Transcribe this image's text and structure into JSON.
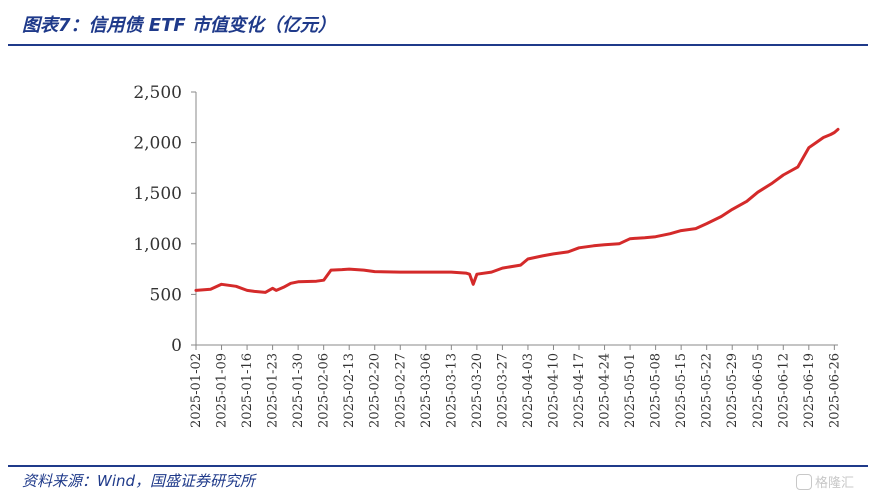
{
  "title": "图表7：信用债 ETF 市值变化（亿元）",
  "source": "资料来源：Wind，国盛证券研究所",
  "watermark": "格隆汇",
  "chart_data": {
    "type": "line",
    "title": "图表7：信用债 ETF 市值变化（亿元）",
    "ylim": [
      0,
      2500
    ],
    "yticks": [
      0,
      500,
      1000,
      1500,
      2000,
      2500
    ],
    "ytick_labels": [
      "0",
      "500",
      "1,000",
      "1,500",
      "2,000",
      "2,500"
    ],
    "grid": false,
    "x_tick_labels": [
      "2025-01-02",
      "2025-01-09",
      "2025-01-16",
      "2025-01-23",
      "2025-01-30",
      "2025-02-06",
      "2025-02-13",
      "2025-02-20",
      "2025-02-27",
      "2025-03-06",
      "2025-03-13",
      "2025-03-20",
      "2025-03-27",
      "2025-04-03",
      "2025-04-10",
      "2025-04-17",
      "2025-04-24",
      "2025-05-01",
      "2025-05-08",
      "2025-05-15",
      "2025-05-22",
      "2025-05-29",
      "2025-06-05",
      "2025-06-12",
      "2025-06-19",
      "2025-06-26"
    ],
    "series": [
      {
        "color": "#d42a2a",
        "x": [
          "2025-01-02",
          "2025-01-06",
          "2025-01-09",
          "2025-01-13",
          "2025-01-16",
          "2025-01-18",
          "2025-01-21",
          "2025-01-23",
          "2025-01-24",
          "2025-01-26",
          "2025-01-28",
          "2025-01-30",
          "2025-02-04",
          "2025-02-06",
          "2025-02-08",
          "2025-02-11",
          "2025-02-13",
          "2025-02-17",
          "2025-02-20",
          "2025-02-27",
          "2025-03-06",
          "2025-03-13",
          "2025-03-17",
          "2025-03-18",
          "2025-03-19",
          "2025-03-20",
          "2025-03-24",
          "2025-03-27",
          "2025-04-01",
          "2025-04-03",
          "2025-04-07",
          "2025-04-10",
          "2025-04-14",
          "2025-04-17",
          "2025-04-21",
          "2025-04-24",
          "2025-04-28",
          "2025-05-01",
          "2025-05-05",
          "2025-05-08",
          "2025-05-12",
          "2025-05-15",
          "2025-05-19",
          "2025-05-22",
          "2025-05-26",
          "2025-05-29",
          "2025-06-02",
          "2025-06-05",
          "2025-06-09",
          "2025-06-12",
          "2025-06-16",
          "2025-06-19",
          "2025-06-21",
          "2025-06-23",
          "2025-06-25",
          "2025-06-26",
          "2025-06-27"
        ],
        "y": [
          540,
          550,
          600,
          580,
          540,
          530,
          520,
          560,
          540,
          570,
          610,
          625,
          630,
          640,
          740,
          745,
          750,
          740,
          725,
          720,
          720,
          720,
          710,
          700,
          600,
          700,
          720,
          760,
          790,
          850,
          880,
          900,
          920,
          960,
          980,
          990,
          1000,
          1050,
          1060,
          1070,
          1100,
          1130,
          1150,
          1200,
          1270,
          1340,
          1420,
          1510,
          1600,
          1680,
          1760,
          1950,
          2000,
          2050,
          2080,
          2100,
          2130
        ]
      }
    ]
  }
}
